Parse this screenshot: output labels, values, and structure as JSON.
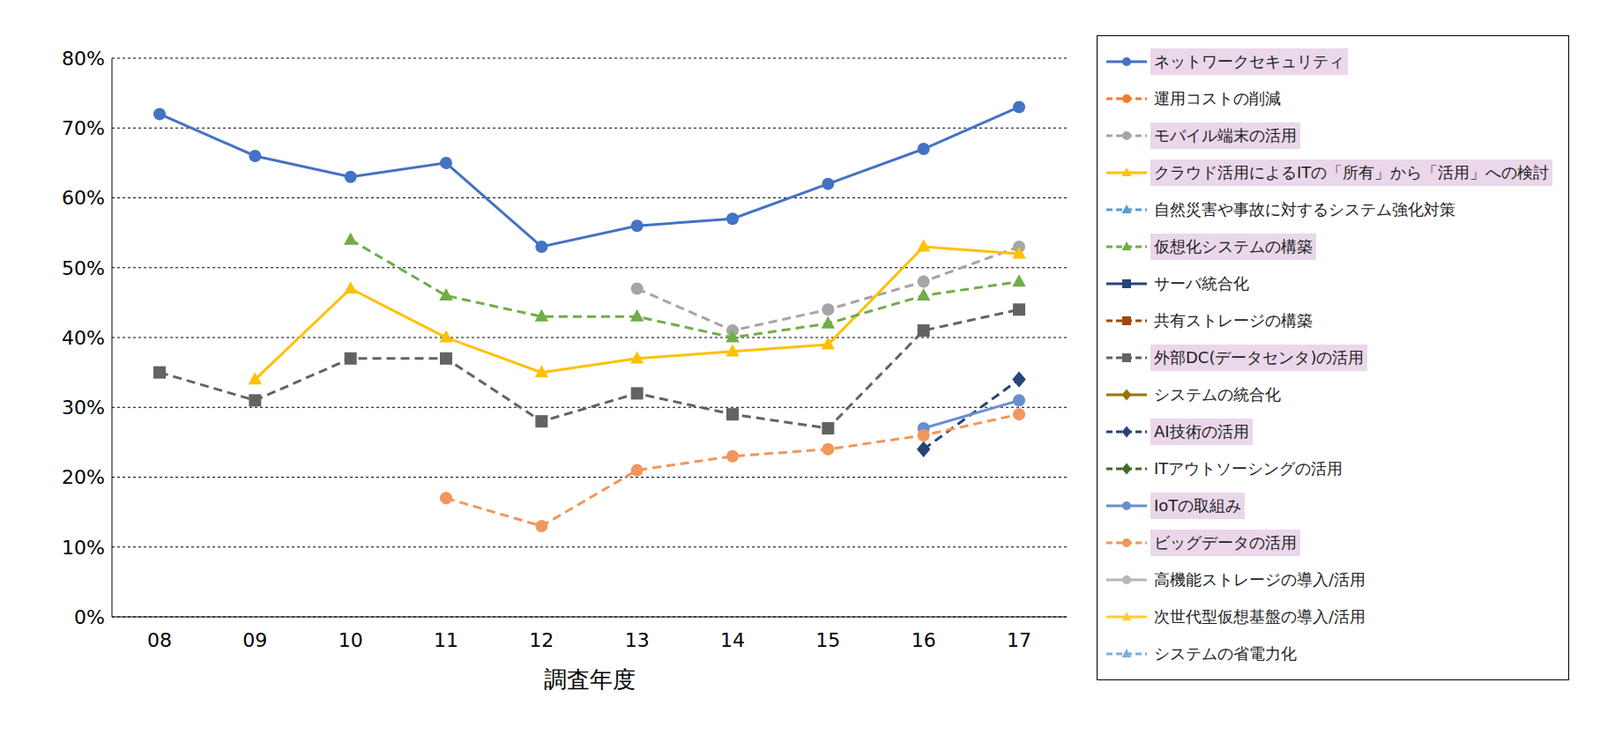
{
  "chart_data": {
    "type": "line",
    "x_label": "調査年度",
    "categories": [
      "08",
      "09",
      "10",
      "11",
      "12",
      "13",
      "14",
      "15",
      "16",
      "17"
    ],
    "ylim": [
      0,
      80
    ],
    "yticks": [
      {
        "value": 0,
        "label": "0%"
      },
      {
        "value": 10,
        "label": "10%"
      },
      {
        "value": 20,
        "label": "20%"
      },
      {
        "value": 30,
        "label": "30%"
      },
      {
        "value": 40,
        "label": "40%"
      },
      {
        "value": 50,
        "label": "50%"
      },
      {
        "value": 60,
        "label": "60%"
      },
      {
        "value": 70,
        "label": "70%"
      },
      {
        "value": 80,
        "label": "80%"
      }
    ],
    "grid": true,
    "legend": "right",
    "series": [
      {
        "name": "ネットワークセキュリティ",
        "color": "#4472c4",
        "line_style": "solid",
        "marker": "circle",
        "values": [
          72,
          66,
          63,
          65,
          53,
          56,
          57,
          62,
          67,
          73
        ]
      },
      {
        "name": "運用コストの削減",
        "color": "#ed7d31",
        "line_style": "dashed",
        "marker": "circle",
        "values": [
          null,
          null,
          null,
          null,
          null,
          null,
          null,
          null,
          null,
          null
        ]
      },
      {
        "name": "モバイル端末の活用",
        "color": "#a5a5a5",
        "line_style": "dashed",
        "marker": "circle",
        "values": [
          null,
          null,
          null,
          null,
          null,
          47,
          41,
          44,
          48,
          53
        ]
      },
      {
        "name": "クラウド活用によるITの「所有」から「活用」への検討",
        "color": "#ffc000",
        "line_style": "solid",
        "marker": "triangle",
        "values": [
          null,
          34,
          47,
          40,
          35,
          37,
          38,
          39,
          53,
          52
        ]
      },
      {
        "name": "自然災害や事故に対するシステム強化対策",
        "color": "#5b9bd5",
        "line_style": "dashed",
        "marker": "triangle",
        "values": [
          null,
          null,
          null,
          null,
          null,
          null,
          null,
          null,
          null,
          null
        ]
      },
      {
        "name": "仮想化システムの構築",
        "color": "#70ad47",
        "line_style": "dashed",
        "marker": "triangle",
        "values": [
          null,
          null,
          54,
          46,
          43,
          43,
          40,
          42,
          46,
          48
        ]
      },
      {
        "name": "サーバ統合化",
        "color": "#264478",
        "line_style": "solid",
        "marker": "square",
        "values": [
          null,
          null,
          null,
          null,
          null,
          null,
          null,
          null,
          null,
          null
        ]
      },
      {
        "name": "共有ストレージの構築",
        "color": "#9e480e",
        "line_style": "dashed",
        "marker": "square",
        "values": [
          null,
          null,
          null,
          null,
          null,
          null,
          null,
          null,
          null,
          null
        ]
      },
      {
        "name": "外部DC(データセンタ)の活用",
        "color": "#636363",
        "line_style": "dashed",
        "marker": "square",
        "values": [
          35,
          31,
          37,
          37,
          28,
          32,
          29,
          27,
          41,
          44
        ]
      },
      {
        "name": "システムの統合化",
        "color": "#997300",
        "line_style": "solid",
        "marker": "diamond",
        "values": [
          null,
          null,
          null,
          null,
          null,
          null,
          null,
          null,
          null,
          null
        ]
      },
      {
        "name": "AI技術の活用",
        "color": "#264478",
        "line_style": "dashed",
        "marker": "diamond",
        "values": [
          null,
          null,
          null,
          null,
          null,
          null,
          null,
          null,
          24,
          34
        ]
      },
      {
        "name": "ITアウトソーシングの活用",
        "color": "#43682b",
        "line_style": "dashed",
        "marker": "diamond",
        "values": [
          null,
          null,
          null,
          null,
          null,
          null,
          null,
          null,
          null,
          null
        ]
      },
      {
        "name": "IoTの取組み",
        "color": "#698ed0",
        "line_style": "solid",
        "marker": "circle",
        "values": [
          null,
          null,
          null,
          null,
          null,
          null,
          null,
          null,
          27,
          31
        ]
      },
      {
        "name": "ビッグデータの活用",
        "color": "#f1975a",
        "line_style": "dashed",
        "marker": "circle",
        "values": [
          null,
          null,
          null,
          17,
          13,
          21,
          23,
          24,
          26,
          29
        ]
      },
      {
        "name": "高機能ストレージの導入/活用",
        "color": "#b7b7b7",
        "line_style": "solid",
        "marker": "circle",
        "values": [
          null,
          null,
          null,
          null,
          null,
          null,
          null,
          null,
          null,
          null
        ]
      },
      {
        "name": "次世代型仮想基盤の導入/活用",
        "color": "#ffcd33",
        "line_style": "solid",
        "marker": "triangle",
        "values": [
          null,
          null,
          null,
          null,
          null,
          null,
          null,
          null,
          null,
          null
        ]
      },
      {
        "name": "システムの省電力化",
        "color": "#7cafdd",
        "line_style": "dashed",
        "marker": "triangle",
        "values": [
          null,
          null,
          null,
          null,
          null,
          null,
          null,
          null,
          null,
          null
        ]
      }
    ]
  }
}
